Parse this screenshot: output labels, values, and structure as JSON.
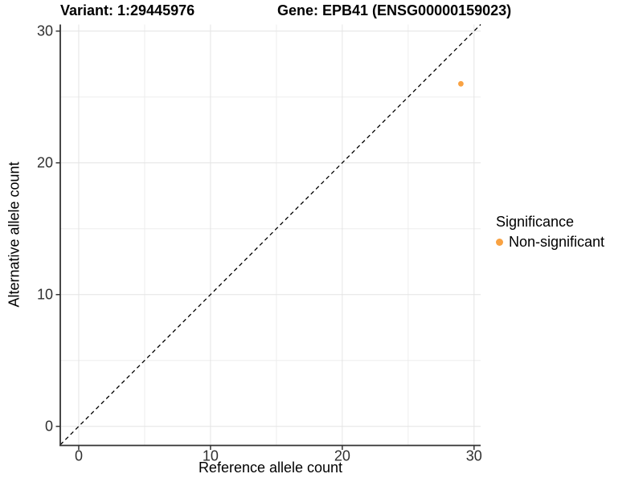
{
  "header": {
    "variant_title": "Variant: 1:29445976",
    "gene_title": "Gene: EPB41 (ENSG00000159023)"
  },
  "chart_data": {
    "type": "scatter",
    "title": "Variant: 1:29445976   Gene: EPB41 (ENSG00000159023)",
    "xlabel": "Reference allele count",
    "ylabel": "Alternative allele count",
    "xlim": [
      -1.4,
      30.5
    ],
    "ylim": [
      -1.45,
      30.5
    ],
    "x_ticks": [
      0,
      10,
      20,
      30
    ],
    "y_ticks": [
      0,
      10,
      20,
      30
    ],
    "x_minor_ticks": [
      5,
      15,
      25
    ],
    "y_minor_ticks": [
      5,
      15,
      25
    ],
    "grid": "on",
    "abline": {
      "slope": 1,
      "intercept": 0,
      "style": "dashed"
    },
    "series": [
      {
        "name": "Non-significant",
        "color": "#F9A242",
        "points": [
          {
            "x": 29,
            "y": 26
          }
        ]
      }
    ],
    "legend": {
      "title": "Significance",
      "position": "right",
      "items": [
        {
          "label": "Non-significant",
          "color": "#F9A242"
        }
      ]
    }
  },
  "colors": {
    "background": "#FFFFFF",
    "grid_major": "#E4E4E4",
    "grid_minor": "#EDEDED",
    "axis_line": "#333333",
    "tick_label": "#303030",
    "abline": "#000000",
    "point": "#F9A242"
  }
}
